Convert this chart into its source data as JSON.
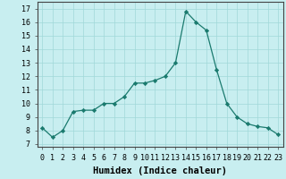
{
  "x": [
    0,
    1,
    2,
    3,
    4,
    5,
    6,
    7,
    8,
    9,
    10,
    11,
    12,
    13,
    14,
    15,
    16,
    17,
    18,
    19,
    20,
    21,
    22,
    23
  ],
  "y": [
    8.2,
    7.5,
    8.0,
    9.4,
    9.5,
    9.5,
    10.0,
    10.0,
    10.5,
    11.5,
    11.5,
    11.7,
    12.0,
    13.0,
    16.8,
    16.0,
    15.4,
    12.5,
    10.0,
    9.0,
    8.5,
    8.3,
    8.2,
    7.7
  ],
  "xlabel": "Humidex (Indice chaleur)",
  "xlim": [
    -0.5,
    23.5
  ],
  "ylim": [
    6.8,
    17.5
  ],
  "yticks": [
    7,
    8,
    9,
    10,
    11,
    12,
    13,
    14,
    15,
    16,
    17
  ],
  "xtick_labels": [
    "0",
    "1",
    "2",
    "3",
    "4",
    "5",
    "6",
    "7",
    "8",
    "9",
    "10",
    "11",
    "12",
    "13",
    "14",
    "15",
    "16",
    "17",
    "18",
    "19",
    "20",
    "21",
    "22",
    "23"
  ],
  "line_color": "#1a7a6e",
  "marker_color": "#1a7a6e",
  "bg_color": "#c8eef0",
  "grid_color": "#a0d8d8",
  "label_fontsize": 7.5,
  "tick_fontsize": 6.0
}
